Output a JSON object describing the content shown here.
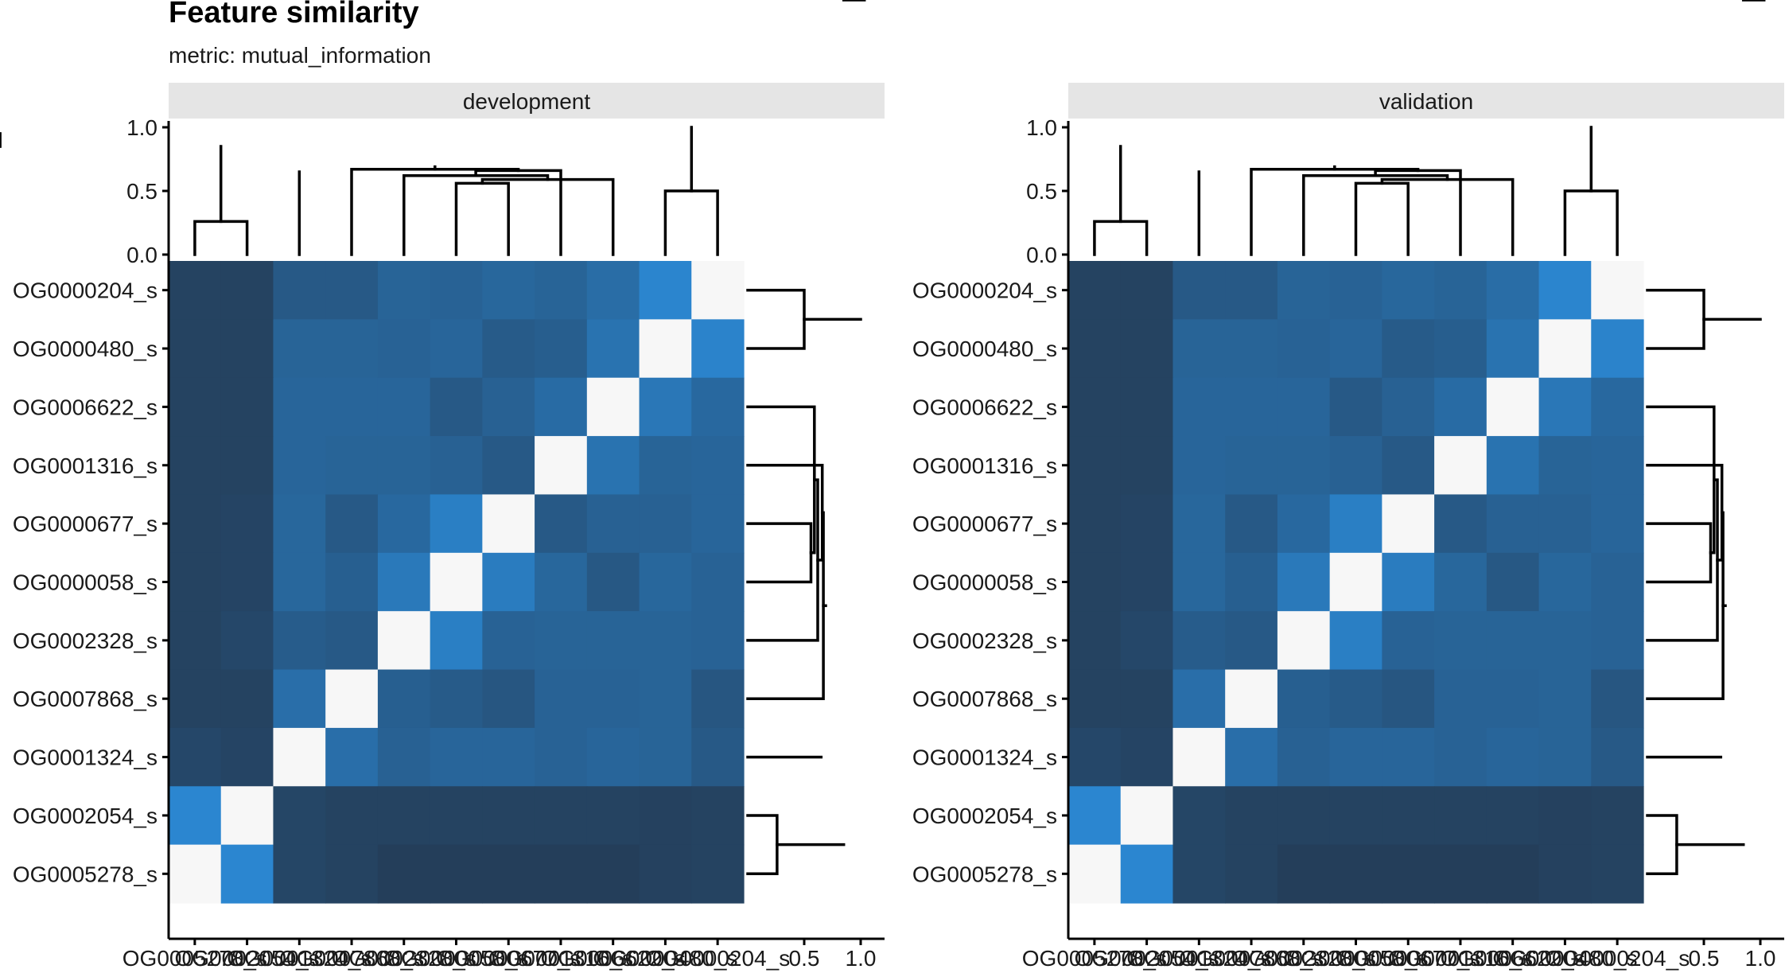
{
  "chart_data": {
    "type": "heatmap",
    "title": "Feature similarity",
    "subtitle": "metric: mutual_information",
    "features": [
      "OG0005278_s",
      "OG0002054_s",
      "OG0001324_s",
      "OG0007868_s",
      "OG0002328_s",
      "OG0000058_s",
      "OG0000677_s",
      "OG0001316_s",
      "OG0006622_s",
      "OG0000480_s",
      "OG0000204_s"
    ],
    "dendrogram_axis_ticks": [
      "0.0",
      "0.5",
      "1.0"
    ],
    "dendrogram_ylim": [
      0,
      1
    ],
    "dendrogram": {
      "merges": [
        {
          "a": 0,
          "b": 1,
          "height": 0.26
        },
        {
          "a": 9,
          "b": 10,
          "height": 0.5
        },
        {
          "a": 5,
          "b": 6,
          "height": 0.56
        },
        {
          "a": 8,
          "b": 13,
          "height": 0.59
        },
        {
          "a": 4,
          "b": 14,
          "height": 0.62
        },
        {
          "a": 7,
          "b": 15,
          "height": 0.66
        },
        {
          "a": 3,
          "b": 16,
          "height": 0.67
        },
        {
          "a": 17,
          "b": 18,
          "height": 0.69
        },
        {
          "a": 2,
          "b": 19,
          "height": 0.65
        },
        {
          "a": 11,
          "b": 20,
          "height": 0.85
        },
        {
          "a": 12,
          "b": 21,
          "height": 1.0
        }
      ]
    },
    "panels": [
      {
        "name": "development",
        "matrix": [
          [
            1.0,
            0.6,
            0.17,
            0.15,
            0.12,
            0.12,
            0.12,
            0.12,
            0.12,
            0.14,
            0.15
          ],
          [
            0.6,
            1.0,
            0.17,
            0.15,
            0.15,
            0.15,
            0.15,
            0.15,
            0.15,
            0.14,
            0.15
          ],
          [
            0.18,
            0.16,
            1.0,
            0.44,
            0.35,
            0.38,
            0.38,
            0.36,
            0.38,
            0.37,
            0.3
          ],
          [
            0.15,
            0.15,
            0.44,
            1.0,
            0.34,
            0.31,
            0.28,
            0.36,
            0.36,
            0.37,
            0.28
          ],
          [
            0.15,
            0.18,
            0.32,
            0.3,
            1.0,
            0.55,
            0.36,
            0.37,
            0.37,
            0.37,
            0.36
          ],
          [
            0.15,
            0.16,
            0.39,
            0.34,
            0.51,
            1.0,
            0.53,
            0.39,
            0.29,
            0.39,
            0.36
          ],
          [
            0.15,
            0.16,
            0.39,
            0.3,
            0.4,
            0.55,
            1.0,
            0.3,
            0.35,
            0.35,
            0.38
          ],
          [
            0.15,
            0.15,
            0.38,
            0.37,
            0.37,
            0.35,
            0.3,
            1.0,
            0.47,
            0.37,
            0.38
          ],
          [
            0.15,
            0.15,
            0.38,
            0.38,
            0.38,
            0.3,
            0.35,
            0.42,
            1.0,
            0.5,
            0.4
          ],
          [
            0.15,
            0.15,
            0.37,
            0.37,
            0.36,
            0.38,
            0.31,
            0.33,
            0.47,
            1.0,
            0.58
          ],
          [
            0.15,
            0.15,
            0.3,
            0.3,
            0.37,
            0.36,
            0.39,
            0.37,
            0.43,
            0.59,
            1.0
          ]
        ]
      },
      {
        "name": "validation",
        "matrix": [
          [
            1.0,
            0.6,
            0.17,
            0.15,
            0.12,
            0.12,
            0.12,
            0.12,
            0.12,
            0.14,
            0.15
          ],
          [
            0.6,
            1.0,
            0.17,
            0.15,
            0.15,
            0.15,
            0.15,
            0.15,
            0.15,
            0.14,
            0.15
          ],
          [
            0.18,
            0.16,
            1.0,
            0.44,
            0.35,
            0.38,
            0.38,
            0.36,
            0.38,
            0.37,
            0.3
          ],
          [
            0.15,
            0.15,
            0.44,
            1.0,
            0.34,
            0.31,
            0.28,
            0.36,
            0.36,
            0.37,
            0.28
          ],
          [
            0.15,
            0.18,
            0.32,
            0.3,
            1.0,
            0.55,
            0.36,
            0.37,
            0.37,
            0.37,
            0.36
          ],
          [
            0.15,
            0.16,
            0.39,
            0.34,
            0.51,
            1.0,
            0.53,
            0.39,
            0.29,
            0.39,
            0.36
          ],
          [
            0.15,
            0.16,
            0.39,
            0.3,
            0.4,
            0.55,
            1.0,
            0.3,
            0.35,
            0.35,
            0.38
          ],
          [
            0.15,
            0.15,
            0.38,
            0.37,
            0.37,
            0.35,
            0.3,
            1.0,
            0.47,
            0.37,
            0.38
          ],
          [
            0.15,
            0.15,
            0.38,
            0.38,
            0.38,
            0.3,
            0.35,
            0.42,
            1.0,
            0.5,
            0.4
          ],
          [
            0.15,
            0.15,
            0.37,
            0.37,
            0.36,
            0.38,
            0.31,
            0.33,
            0.47,
            1.0,
            0.58
          ],
          [
            0.15,
            0.15,
            0.3,
            0.3,
            0.37,
            0.36,
            0.39,
            0.37,
            0.43,
            0.59,
            1.0
          ]
        ]
      }
    ],
    "color_scale": {
      "low": "#243b55",
      "mid": "#2b86d0",
      "high": "#f7f7f7"
    },
    "grid": false,
    "legend": "none"
  }
}
